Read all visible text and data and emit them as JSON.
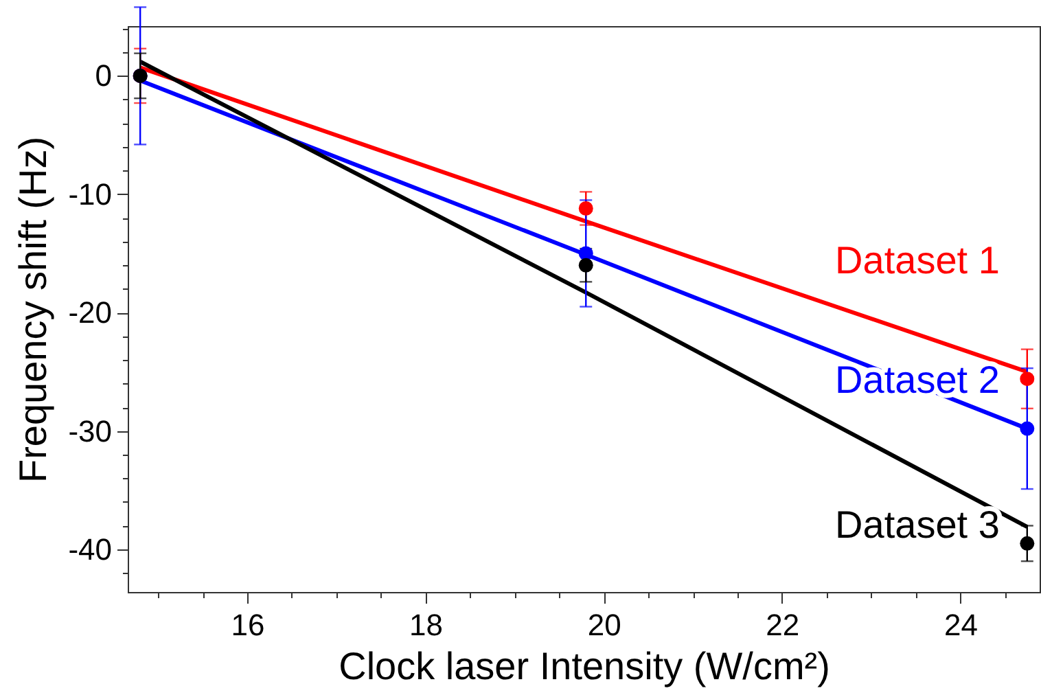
{
  "chart_data": {
    "type": "scatter",
    "xlabel": "Clock laser Intensity (W/cm²)",
    "ylabel": "Frequency shift (Hz)",
    "x": [
      14.8,
      19.8,
      24.75
    ],
    "xlim": [
      14.66,
      24.89
    ],
    "ylim": [
      -43.6,
      4.2
    ],
    "xticks": [
      {
        "value": 15,
        "label": null
      },
      {
        "value": 15.5,
        "label": null
      },
      16,
      {
        "value": 16.5,
        "label": null
      },
      {
        "value": 17,
        "label": null
      },
      {
        "value": 17.5,
        "label": null
      },
      18,
      {
        "value": 18.5,
        "label": null
      },
      {
        "value": 19,
        "label": null
      },
      {
        "value": 19.5,
        "label": null
      },
      20,
      {
        "value": 20.5,
        "label": null
      },
      {
        "value": 21,
        "label": null
      },
      {
        "value": 21.5,
        "label": null
      },
      22,
      {
        "value": 22.5,
        "label": null
      },
      {
        "value": 23,
        "label": null
      },
      {
        "value": 23.5,
        "label": null
      },
      24,
      {
        "value": 24.5,
        "label": null
      }
    ],
    "yticks": [
      {
        "value": 4,
        "label": null
      },
      {
        "value": 2,
        "label": null
      },
      0,
      {
        "value": -2,
        "label": null
      },
      {
        "value": -4,
        "label": null
      },
      {
        "value": -6,
        "label": null
      },
      {
        "value": -8,
        "label": null
      },
      -10,
      {
        "value": -12,
        "label": null
      },
      {
        "value": -14,
        "label": null
      },
      {
        "value": -16,
        "label": null
      },
      {
        "value": -18,
        "label": null
      },
      -20,
      {
        "value": -22,
        "label": null
      },
      {
        "value": -24,
        "label": null
      },
      {
        "value": -26,
        "label": null
      },
      {
        "value": -28,
        "label": null
      },
      -30,
      {
        "value": -32,
        "label": null
      },
      {
        "value": -34,
        "label": null
      },
      {
        "value": -36,
        "label": null
      },
      {
        "value": -38,
        "label": null
      },
      -40,
      {
        "value": -42,
        "label": null
      }
    ],
    "grid": false,
    "marker": "circle",
    "line_style": "solid",
    "series": [
      {
        "type": "line",
        "marker": "none",
        "color": "#ff0000",
        "values": [
          0.7,
          -12.3,
          -25
        ]
      },
      {
        "type": "line",
        "marker": "none",
        "color": "#0000ff",
        "values": [
          -0.4,
          -15.1,
          -29.8
        ]
      },
      {
        "type": "line",
        "marker": "none",
        "color": "#000000",
        "values": [
          1.2,
          -18.3,
          -38.1
        ]
      },
      {
        "name": "Dataset 1",
        "color": "#ff0000",
        "values": [
          0,
          -11.2,
          -25.6
        ],
        "errors": [
          2.3,
          1.4,
          2.5
        ]
      },
      {
        "name": "Dataset 2",
        "color": "#0000ff",
        "values": [
          0,
          -15,
          -29.8
        ],
        "errors": [
          5.8,
          4.5,
          5.1
        ]
      },
      {
        "name": "Dataset 3",
        "color": "#000000",
        "values": [
          0,
          -16,
          -39.5
        ],
        "errors": [
          1.9,
          1.4,
          1.5
        ]
      }
    ]
  }
}
